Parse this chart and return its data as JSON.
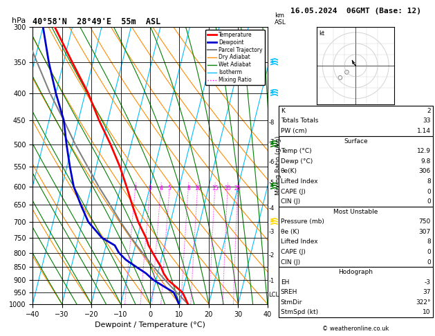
{
  "title_left": "40°58'N  28°49'E  55m  ASL",
  "title_right": "16.05.2024  06GMT (Base: 12)",
  "hpa_label": "hPa",
  "xlabel": "Dewpoint / Temperature (°C)",
  "pressure_ticks": [
    300,
    350,
    400,
    450,
    500,
    550,
    600,
    650,
    700,
    750,
    800,
    850,
    900,
    950,
    1000
  ],
  "xmin": -40,
  "xmax": 40,
  "skew": 45,
  "km_ticks": [
    1,
    2,
    3,
    4,
    5,
    6,
    7,
    8
  ],
  "km_pressures": [
    905,
    810,
    730,
    660,
    590,
    540,
    495,
    455
  ],
  "mixing_ratio_values": [
    2,
    3,
    4,
    5,
    8,
    10,
    15,
    20,
    25
  ],
  "mixing_ratio_labels": [
    "2",
    "3",
    "4",
    "5",
    "8",
    "10",
    "15",
    "20",
    "25"
  ],
  "mixing_ratio_color": "#ff00ff",
  "isotherm_color": "#00bfff",
  "dry_adiabat_color": "#ff8c00",
  "wet_adiabat_color": "#008000",
  "temp_color": "#ff0000",
  "dewpoint_color": "#0000cd",
  "parcel_color": "#808080",
  "bg_color": "#ffffff",
  "legend_entries": [
    {
      "label": "Temperature",
      "color": "#ff0000",
      "lw": 2,
      "ls": "-"
    },
    {
      "label": "Dewpoint",
      "color": "#0000cd",
      "lw": 2,
      "ls": "-"
    },
    {
      "label": "Parcel Trajectory",
      "color": "#808080",
      "lw": 1.5,
      "ls": "-"
    },
    {
      "label": "Dry Adiabat",
      "color": "#ff8c00",
      "lw": 1,
      "ls": "-"
    },
    {
      "label": "Wet Adiabat",
      "color": "#008000",
      "lw": 1,
      "ls": "-"
    },
    {
      "label": "Isotherm",
      "color": "#00bfff",
      "lw": 1,
      "ls": "-"
    },
    {
      "label": "Mixing Ratio",
      "color": "#ff00ff",
      "lw": 1,
      "ls": ":"
    }
  ],
  "temp_profile": {
    "pressure": [
      1000,
      975,
      950,
      925,
      900,
      875,
      850,
      825,
      800,
      775,
      750,
      700,
      650,
      600,
      550,
      500,
      450,
      400,
      350,
      300
    ],
    "temp": [
      12.9,
      11.5,
      10.0,
      7.0,
      4.0,
      2.0,
      0.5,
      -1.5,
      -3.5,
      -5.5,
      -7.0,
      -11.0,
      -14.5,
      -18.0,
      -22.0,
      -27.0,
      -33.0,
      -39.0,
      -47.0,
      -56.0
    ]
  },
  "dewpoint_profile": {
    "pressure": [
      1000,
      975,
      950,
      925,
      900,
      875,
      850,
      825,
      800,
      775,
      750,
      700,
      650,
      600,
      550,
      500,
      450,
      400,
      350,
      300
    ],
    "temp": [
      9.8,
      8.5,
      7.0,
      3.0,
      -1.0,
      -4.0,
      -8.0,
      -12.0,
      -15.0,
      -17.0,
      -22.0,
      -28.0,
      -32.0,
      -36.0,
      -39.0,
      -42.0,
      -45.0,
      -50.0,
      -55.0,
      -60.0
    ]
  },
  "parcel_profile": {
    "pressure": [
      1000,
      975,
      950,
      925,
      900,
      875,
      850,
      825,
      800,
      775,
      750,
      700,
      650,
      600,
      550,
      500,
      450,
      400,
      350,
      300
    ],
    "temp": [
      12.9,
      10.5,
      8.0,
      5.5,
      3.0,
      0.5,
      -2.0,
      -4.5,
      -7.0,
      -9.5,
      -12.0,
      -17.0,
      -22.0,
      -27.5,
      -33.0,
      -39.0,
      -45.0,
      -52.0,
      -59.0,
      -67.0
    ]
  },
  "lcl_pressure": 960,
  "copyright": "© weatheronline.co.uk",
  "table_rows": [
    {
      "label": "K",
      "value": "2",
      "header": false
    },
    {
      "label": "Totals Totals",
      "value": "33",
      "header": false
    },
    {
      "label": "PW (cm)",
      "value": "1.14",
      "header": false
    },
    {
      "label": "Surface",
      "value": "",
      "header": true
    },
    {
      "label": "Temp (°C)",
      "value": "12.9",
      "header": false
    },
    {
      "label": "Dewp (°C)",
      "value": "9.8",
      "header": false
    },
    {
      "label": "θe(K)",
      "value": "306",
      "header": false
    },
    {
      "label": "Lifted Index",
      "value": "8",
      "header": false
    },
    {
      "label": "CAPE (J)",
      "value": "0",
      "header": false
    },
    {
      "label": "CIN (J)",
      "value": "0",
      "header": false
    },
    {
      "label": "Most Unstable",
      "value": "",
      "header": true
    },
    {
      "label": "Pressure (mb)",
      "value": "750",
      "header": false
    },
    {
      "label": "θe (K)",
      "value": "307",
      "header": false
    },
    {
      "label": "Lifted Index",
      "value": "8",
      "header": false
    },
    {
      "label": "CAPE (J)",
      "value": "0",
      "header": false
    },
    {
      "label": "CIN (J)",
      "value": "0",
      "header": false
    },
    {
      "label": "Hodograph",
      "value": "",
      "header": true
    },
    {
      "label": "EH",
      "value": "-3",
      "header": false
    },
    {
      "label": "SREH",
      "value": "37",
      "header": false
    },
    {
      "label": "StmDir",
      "value": "322°",
      "header": false
    },
    {
      "label": "StmSpd (kt)",
      "value": "10",
      "header": false
    }
  ],
  "wind_flag_pressures": [
    350,
    400,
    500,
    600,
    700
  ],
  "wind_flag_colors": [
    "#00bfff",
    "#00bfff",
    "#008000",
    "#008000",
    "#ffd700"
  ]
}
